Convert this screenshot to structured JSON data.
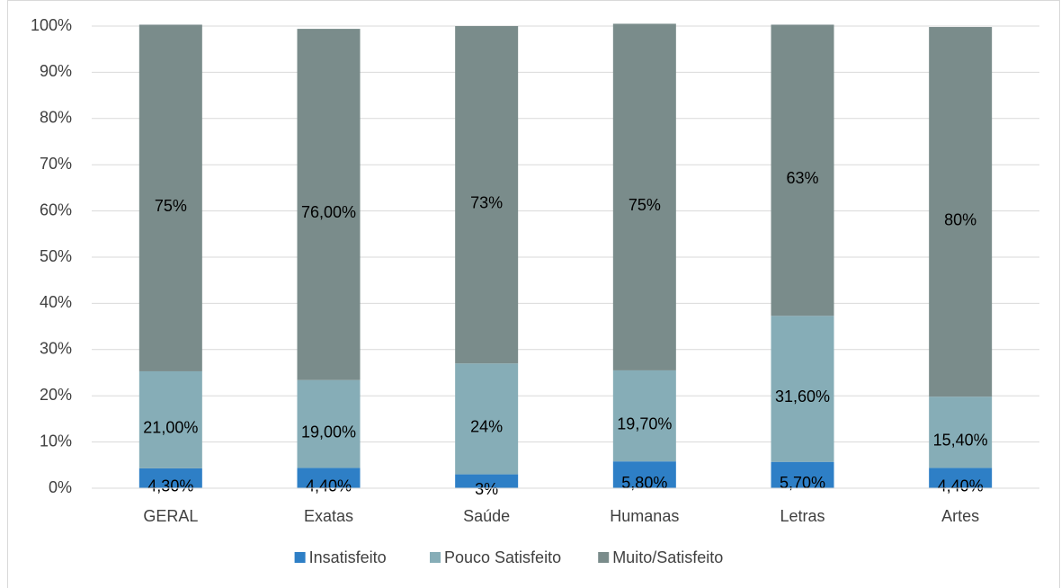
{
  "chart_data": {
    "type": "stacked_bar",
    "categories": [
      "GERAL",
      "Exatas",
      "Saúde",
      "Humanas",
      "Letras",
      "Artes"
    ],
    "series": [
      {
        "name": "Insatisfeito",
        "color": "#2e7fc6",
        "values": [
          4.3,
          4.4,
          3,
          5.8,
          5.7,
          4.4
        ],
        "value_labels": [
          "4,30%",
          "4,40%",
          "3%",
          "5,80%",
          "5,70%",
          "4,40%"
        ]
      },
      {
        "name": "Pouco Satisfeito",
        "color": "#86adb7",
        "values": [
          21,
          19,
          24,
          19.7,
          31.6,
          15.4
        ],
        "value_labels": [
          "21,00%",
          "19,00%",
          "24%",
          "19,70%",
          "31,60%",
          "15,40%"
        ]
      },
      {
        "name": "Muito/Satisfeito",
        "color": "#7a8c8b",
        "values": [
          75,
          76,
          73,
          75,
          63,
          80
        ],
        "value_labels": [
          "75%",
          "76,00%",
          "73%",
          "75%",
          "63%",
          "80%"
        ]
      }
    ],
    "ylim": [
      0,
      100
    ],
    "yticks": [
      {
        "value": 0,
        "label": "0%"
      },
      {
        "value": 10,
        "label": "10%"
      },
      {
        "value": 20,
        "label": "20%"
      },
      {
        "value": 30,
        "label": "30%"
      },
      {
        "value": 40,
        "label": "40%"
      },
      {
        "value": 50,
        "label": "50%"
      },
      {
        "value": 60,
        "label": "60%"
      },
      {
        "value": 70,
        "label": "70%"
      },
      {
        "value": 80,
        "label": "80%"
      },
      {
        "value": 90,
        "label": "90%"
      },
      {
        "value": 100,
        "label": "100%"
      }
    ],
    "grid": true,
    "legend": "bottom"
  }
}
